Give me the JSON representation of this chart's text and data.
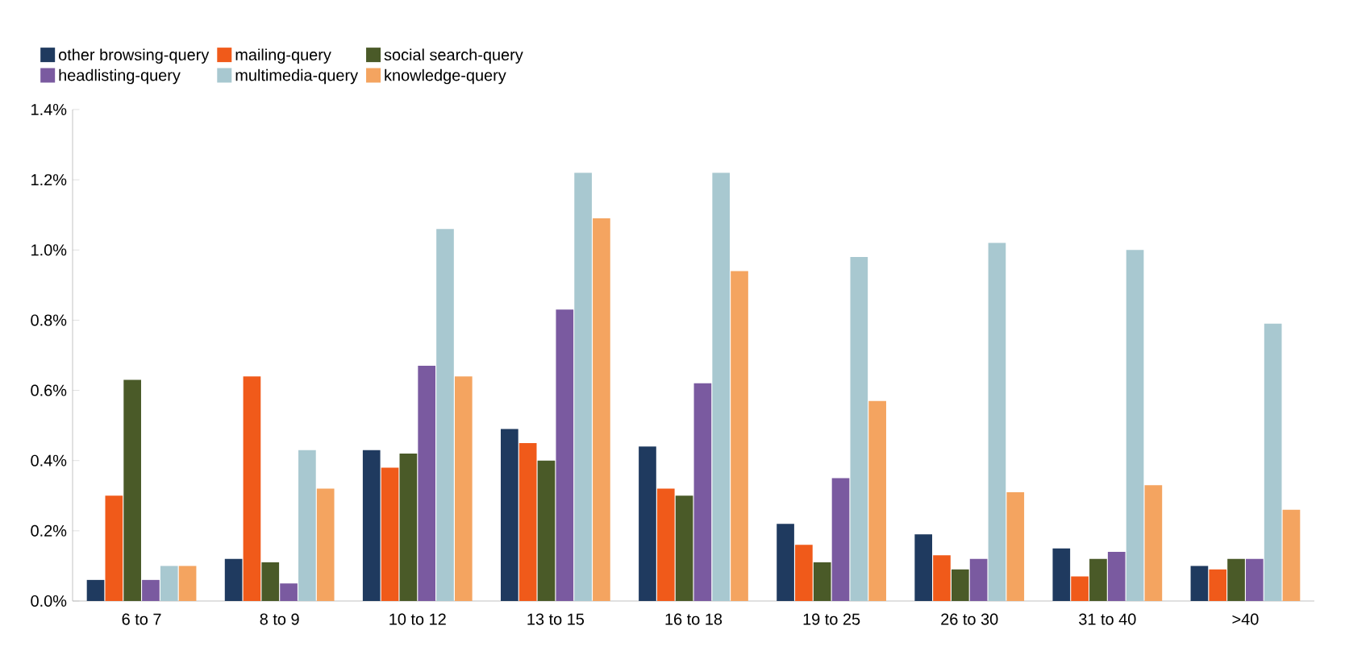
{
  "chart_data": {
    "type": "bar",
    "categories": [
      "6 to 7",
      "8 to 9",
      "10 to 12",
      "13 to 15",
      "16 to 18",
      "19 to 25",
      "26 to 30",
      "31 to 40",
      ">40"
    ],
    "series": [
      {
        "name": "other browsing-query",
        "color": "#1f3a5f",
        "values": [
          0.06,
          0.12,
          0.43,
          0.49,
          0.44,
          0.22,
          0.19,
          0.15,
          0.1
        ]
      },
      {
        "name": "mailing-query",
        "color": "#f05a1a",
        "values": [
          0.3,
          0.64,
          0.38,
          0.45,
          0.32,
          0.16,
          0.13,
          0.07,
          0.09
        ]
      },
      {
        "name": "social search-query",
        "color": "#4a5a28",
        "values": [
          0.63,
          0.11,
          0.42,
          0.4,
          0.3,
          0.11,
          0.09,
          0.12,
          0.12
        ]
      },
      {
        "name": "headlisting-query",
        "color": "#7a5aa0",
        "values": [
          0.06,
          0.05,
          0.67,
          0.83,
          0.62,
          0.35,
          0.12,
          0.14,
          0.12
        ]
      },
      {
        "name": "multimedia-query",
        "color": "#a8c8d0",
        "values": [
          0.1,
          0.43,
          1.06,
          1.22,
          1.22,
          0.98,
          1.02,
          1.0,
          0.79
        ]
      },
      {
        "name": "knowledge-query",
        "color": "#f4a460",
        "values": [
          0.1,
          0.32,
          0.64,
          1.09,
          0.94,
          0.57,
          0.31,
          0.33,
          0.26
        ]
      }
    ],
    "ylim": [
      0,
      1.4
    ],
    "yticks": [
      {
        "value": 0,
        "label": "0.0%"
      },
      {
        "value": 0.2,
        "label": "0.2%"
      },
      {
        "value": 0.4,
        "label": "0.4%"
      },
      {
        "value": 0.6,
        "label": "0.6%"
      },
      {
        "value": 0.8,
        "label": "0.8%"
      },
      {
        "value": 1.0,
        "label": "1.0%"
      },
      {
        "value": 1.2,
        "label": "1.2%"
      },
      {
        "value": 1.4,
        "label": "1.4%"
      }
    ],
    "grid": false,
    "legend": "top"
  }
}
